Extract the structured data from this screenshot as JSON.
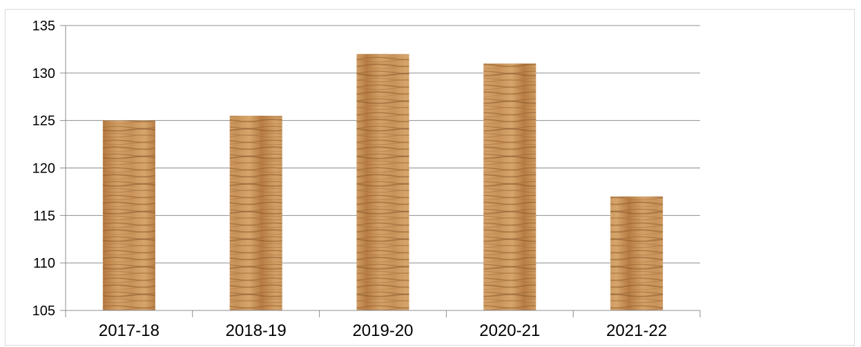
{
  "chart_data": {
    "type": "bar",
    "title": "",
    "xlabel": "",
    "ylabel": "",
    "categories": [
      "2017-18",
      "2018-19",
      "2019-20",
      "2020-21",
      "2021-22"
    ],
    "values": [
      125,
      125.5,
      132,
      131,
      117
    ],
    "ylim": [
      105,
      135
    ],
    "yticks": [
      105,
      110,
      115,
      120,
      125,
      130,
      135
    ],
    "ytick_labels": [
      "105",
      "110",
      "115",
      "120",
      "125",
      "130",
      "135"
    ],
    "grid": true,
    "legend": "none",
    "bar_fill": "wood-texture",
    "colors": {
      "bar_base": "#c9955a",
      "bar_dark": "#8a5a2b",
      "grid": "#8c8c8c",
      "axis": "#8c8c8c",
      "frame": "#d9d9d9"
    }
  }
}
